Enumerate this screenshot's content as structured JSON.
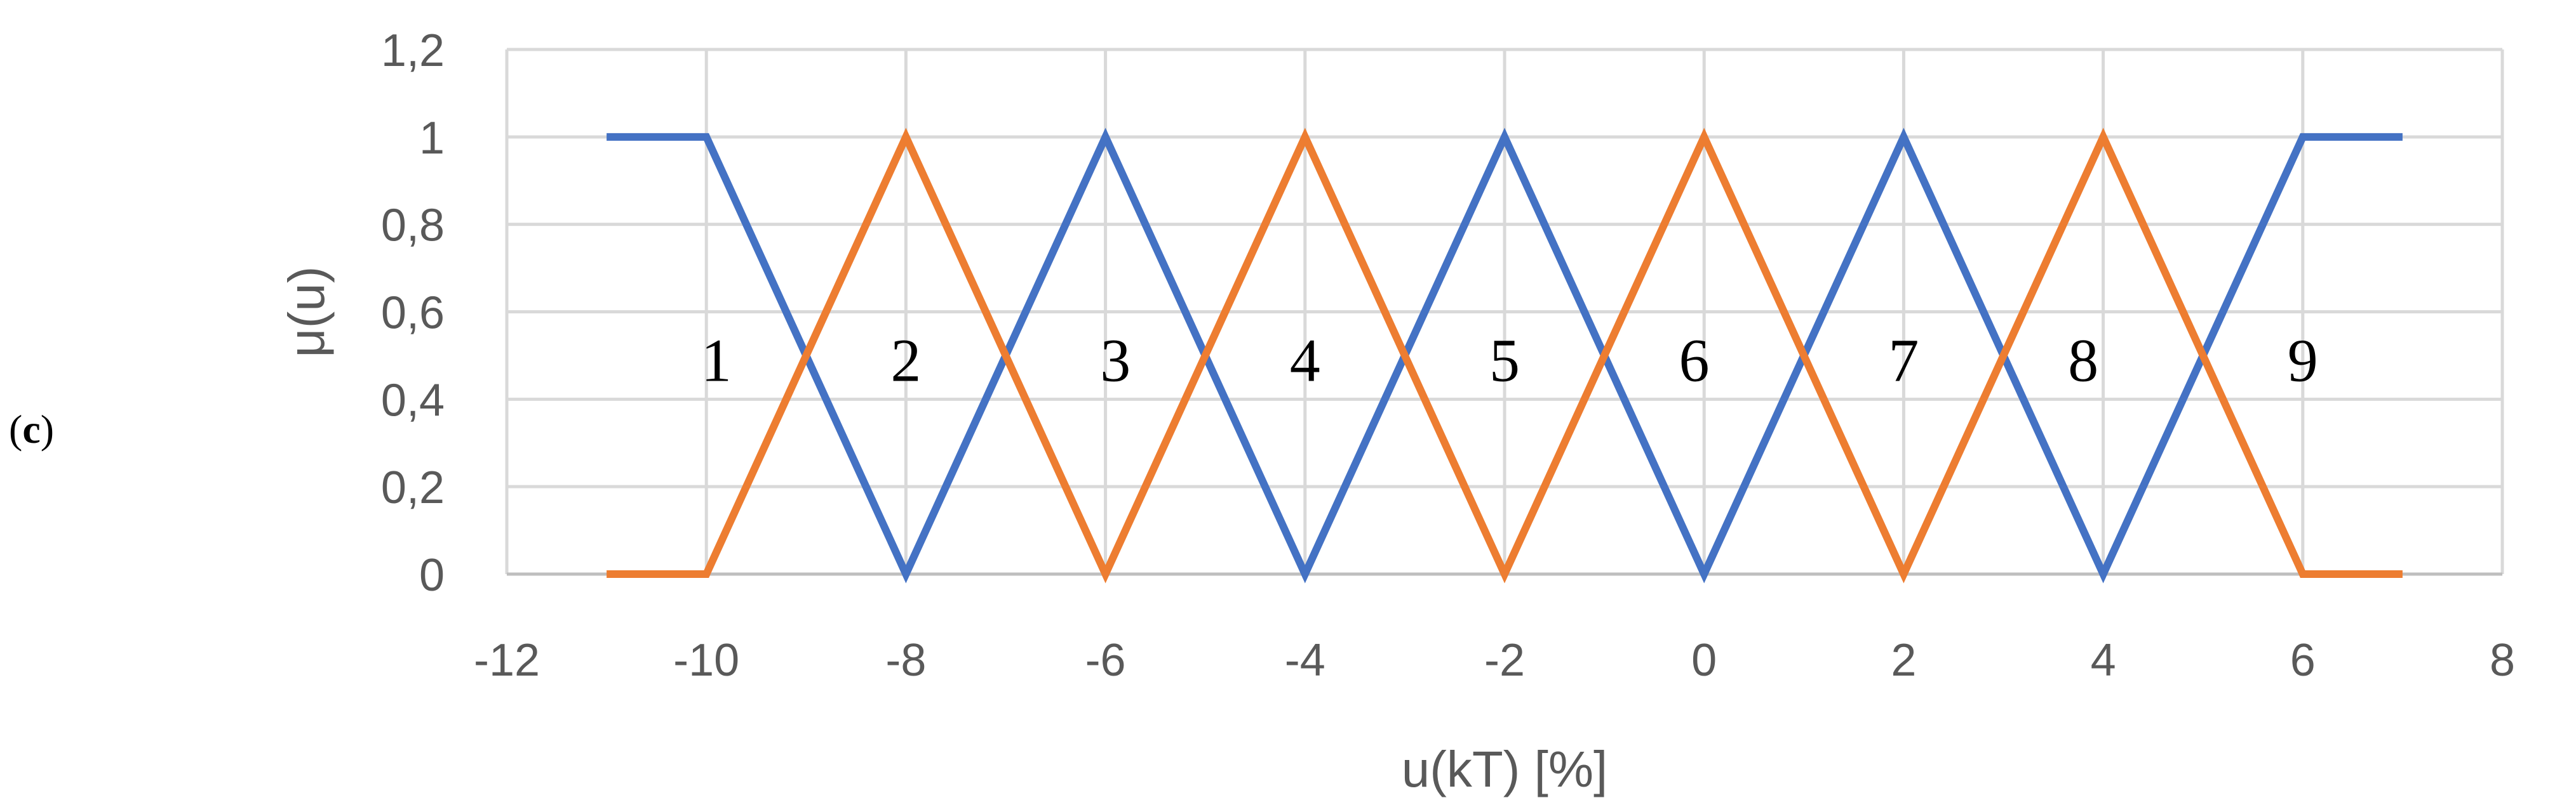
{
  "panel_label": {
    "open": "(",
    "letter": "c",
    "close": ")"
  },
  "colors": {
    "blue": "#4472C4",
    "orange": "#ED7D31",
    "grid": "#D9D9D9",
    "axis_text": "#595959"
  },
  "chart_data": {
    "type": "line",
    "title": "",
    "xlabel": "u(kT) [%]",
    "ylabel": "μ(u)",
    "xlim": [
      -12,
      8
    ],
    "ylim": [
      0,
      1.2
    ],
    "grid": true,
    "legend": "none",
    "x_ticks": [
      -12,
      -10,
      -8,
      -6,
      -4,
      -2,
      0,
      2,
      4,
      6,
      8
    ],
    "y_ticks": [
      0,
      0.2,
      0.4,
      0.6,
      0.8,
      1,
      1.2
    ],
    "x_tick_labels": [
      "-12",
      "-10",
      "-8",
      "-6",
      "-4",
      "-2",
      "0",
      "2",
      "4",
      "6",
      "8"
    ],
    "y_tick_labels": [
      "0",
      "0,2",
      "0,4",
      "0,6",
      "0,8",
      "1",
      "1,2"
    ],
    "series": [
      {
        "color": "#4472C4",
        "x": [
          -11,
          -10,
          -8,
          -6,
          -4,
          -2,
          0,
          2,
          4,
          6,
          7
        ],
        "y": [
          1,
          1,
          0,
          1,
          0,
          1,
          0,
          1,
          0,
          1,
          1
        ]
      },
      {
        "color": "#ED7D31",
        "x": [
          -11,
          -10,
          -8,
          -6,
          -4,
          -2,
          0,
          2,
          4,
          6,
          7
        ],
        "y": [
          0,
          0,
          1,
          0,
          1,
          0,
          1,
          0,
          1,
          0,
          0
        ]
      }
    ],
    "annotations": [
      {
        "text": "1",
        "x": -9.9,
        "y": 0.5
      },
      {
        "text": "2",
        "x": -8,
        "y": 0.5
      },
      {
        "text": "3",
        "x": -5.9,
        "y": 0.5
      },
      {
        "text": "4",
        "x": -4,
        "y": 0.5
      },
      {
        "text": "5",
        "x": -2,
        "y": 0.5
      },
      {
        "text": "6",
        "x": -0.1,
        "y": 0.5
      },
      {
        "text": "7",
        "x": 2,
        "y": 0.5
      },
      {
        "text": "8",
        "x": 3.8,
        "y": 0.5
      },
      {
        "text": "9",
        "x": 6,
        "y": 0.5
      }
    ]
  }
}
